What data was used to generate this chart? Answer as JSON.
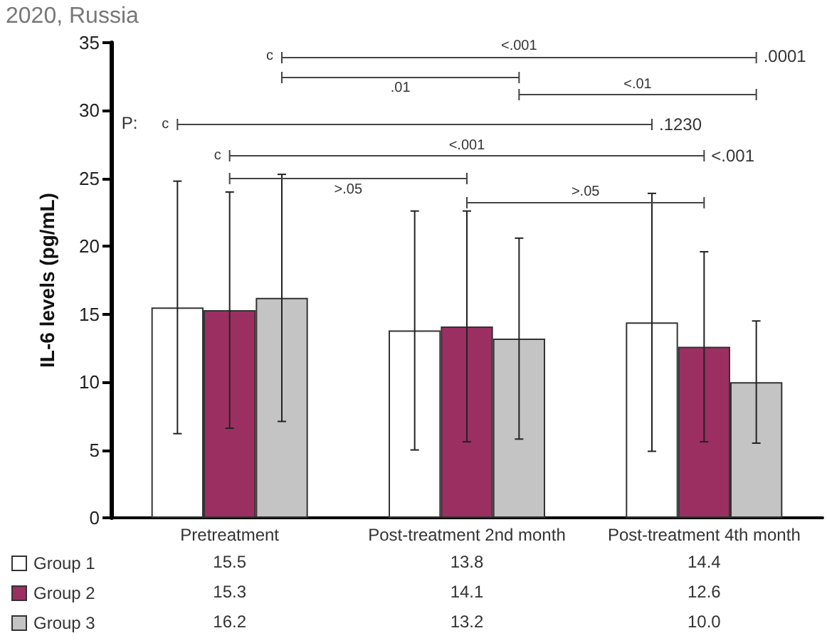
{
  "chart_data": {
    "type": "bar",
    "ylabel": "IL-6 levels (pg/mL)",
    "categories": [
      "Pretreatment",
      "Post-treatment 2nd month",
      "Post-treatment 4th month"
    ],
    "series": [
      {
        "name": "Group 1",
        "color": "#ffffff",
        "values": [
          15.5,
          13.8,
          14.4
        ],
        "errors": [
          9.3,
          8.8,
          9.5
        ],
        "value_labels": [
          "15.5",
          "13.8",
          "14.4"
        ]
      },
      {
        "name": "Group 2",
        "color": "#9c2f62",
        "values": [
          15.3,
          14.1,
          12.6
        ],
        "errors": [
          8.7,
          8.5,
          7.0
        ],
        "value_labels": [
          "15.3",
          "14.1",
          "12.6"
        ]
      },
      {
        "name": "Group 3",
        "color": "#c4c4c4",
        "values": [
          16.2,
          13.2,
          10.0
        ],
        "errors": [
          9.1,
          7.4,
          4.5
        ],
        "value_labels": [
          "16.2",
          "13.2",
          "10.0"
        ]
      }
    ],
    "ylim": [
      0,
      35
    ],
    "yticks": [
      0,
      5,
      10,
      15,
      20,
      25,
      30,
      35
    ],
    "grid": false,
    "legend": "bottom left",
    "annotations": [
      "c",
      "<.001",
      ".0001",
      ".01",
      "<.01",
      "P:",
      "c",
      ".1230",
      "c",
      "<.001",
      "<.001",
      ">.05",
      ">.05",
      "2020, Russia"
    ]
  }
}
